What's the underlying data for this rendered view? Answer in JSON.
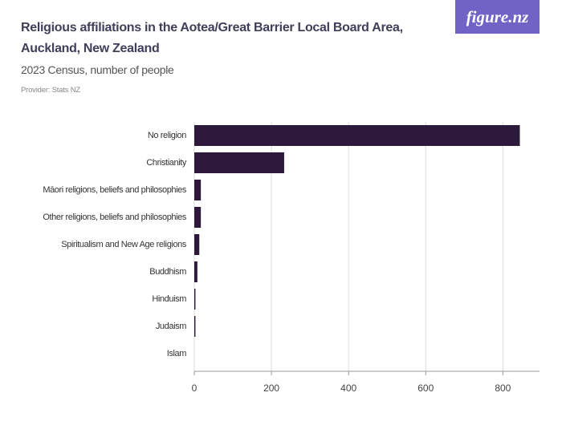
{
  "logo": "figure.nz",
  "chart_data": {
    "type": "hbar",
    "title": "Religious affiliations in the Aotea/Great Barrier Local Board Area, Auckland, New Zealand",
    "subtitle": "2023 Census, number of people",
    "provider": "Provider: Stats NZ",
    "categories": [
      "No religion",
      "Christianity",
      "Māori religions, beliefs and philosophies",
      "Other religions, beliefs and philosophies",
      "Spiritualism and New Age religions",
      "Buddhism",
      "Hinduism",
      "Judaism",
      "Islam"
    ],
    "values": [
      844,
      233,
      17,
      17,
      13,
      8,
      3,
      3,
      0
    ],
    "color": "#2d1a3b",
    "xlim": [
      0,
      895
    ],
    "xticks": [
      0,
      200,
      400,
      600,
      800
    ],
    "grid": true
  }
}
